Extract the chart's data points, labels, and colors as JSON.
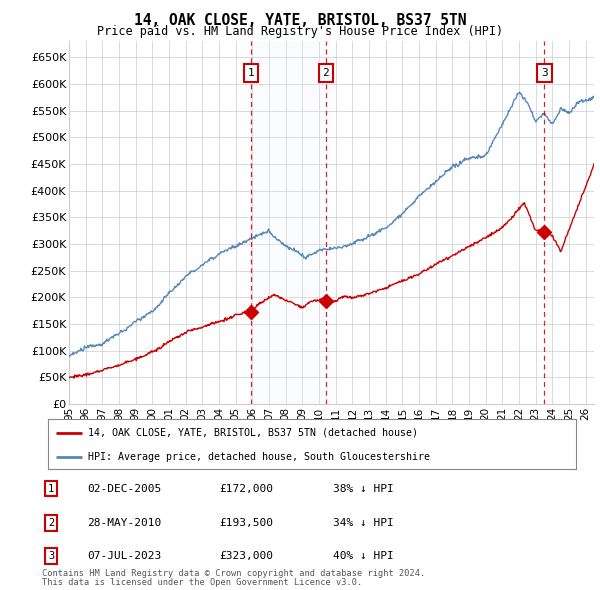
{
  "title": "14, OAK CLOSE, YATE, BRISTOL, BS37 5TN",
  "subtitle": "Price paid vs. HM Land Registry's House Price Index (HPI)",
  "xlim_start": 1995.0,
  "xlim_end": 2026.5,
  "ylim_min": 0,
  "ylim_max": 680000,
  "yticks": [
    0,
    50000,
    100000,
    150000,
    200000,
    250000,
    300000,
    350000,
    400000,
    450000,
    500000,
    550000,
    600000,
    650000
  ],
  "ytick_labels": [
    "£0",
    "£50K",
    "£100K",
    "£150K",
    "£200K",
    "£250K",
    "£300K",
    "£350K",
    "£400K",
    "£450K",
    "£500K",
    "£550K",
    "£600K",
    "£650K"
  ],
  "xticks": [
    1995,
    1996,
    1997,
    1998,
    1999,
    2000,
    2001,
    2002,
    2003,
    2004,
    2005,
    2006,
    2007,
    2008,
    2009,
    2010,
    2011,
    2012,
    2013,
    2014,
    2015,
    2016,
    2017,
    2018,
    2019,
    2020,
    2021,
    2022,
    2023,
    2024,
    2025,
    2026
  ],
  "sale_dates": [
    2005.92,
    2010.41,
    2023.52
  ],
  "sale_prices": [
    172000,
    193500,
    323000
  ],
  "sale_labels": [
    "1",
    "2",
    "3"
  ],
  "red_line_color": "#cc0000",
  "blue_line_color": "#5588bb",
  "shade_color": "#ddeeff",
  "vline_color": "#cc0000",
  "grid_color": "#cccccc",
  "bg_color": "#ffffff",
  "legend_label_red": "14, OAK CLOSE, YATE, BRISTOL, BS37 5TN (detached house)",
  "legend_label_blue": "HPI: Average price, detached house, South Gloucestershire",
  "table_rows": [
    {
      "num": "1",
      "date": "02-DEC-2005",
      "price": "£172,000",
      "pct": "38% ↓ HPI"
    },
    {
      "num": "2",
      "date": "28-MAY-2010",
      "price": "£193,500",
      "pct": "34% ↓ HPI"
    },
    {
      "num": "3",
      "date": "07-JUL-2023",
      "price": "£323,000",
      "pct": "40% ↓ HPI"
    }
  ],
  "footer1": "Contains HM Land Registry data © Crown copyright and database right 2024.",
  "footer2": "This data is licensed under the Open Government Licence v3.0."
}
